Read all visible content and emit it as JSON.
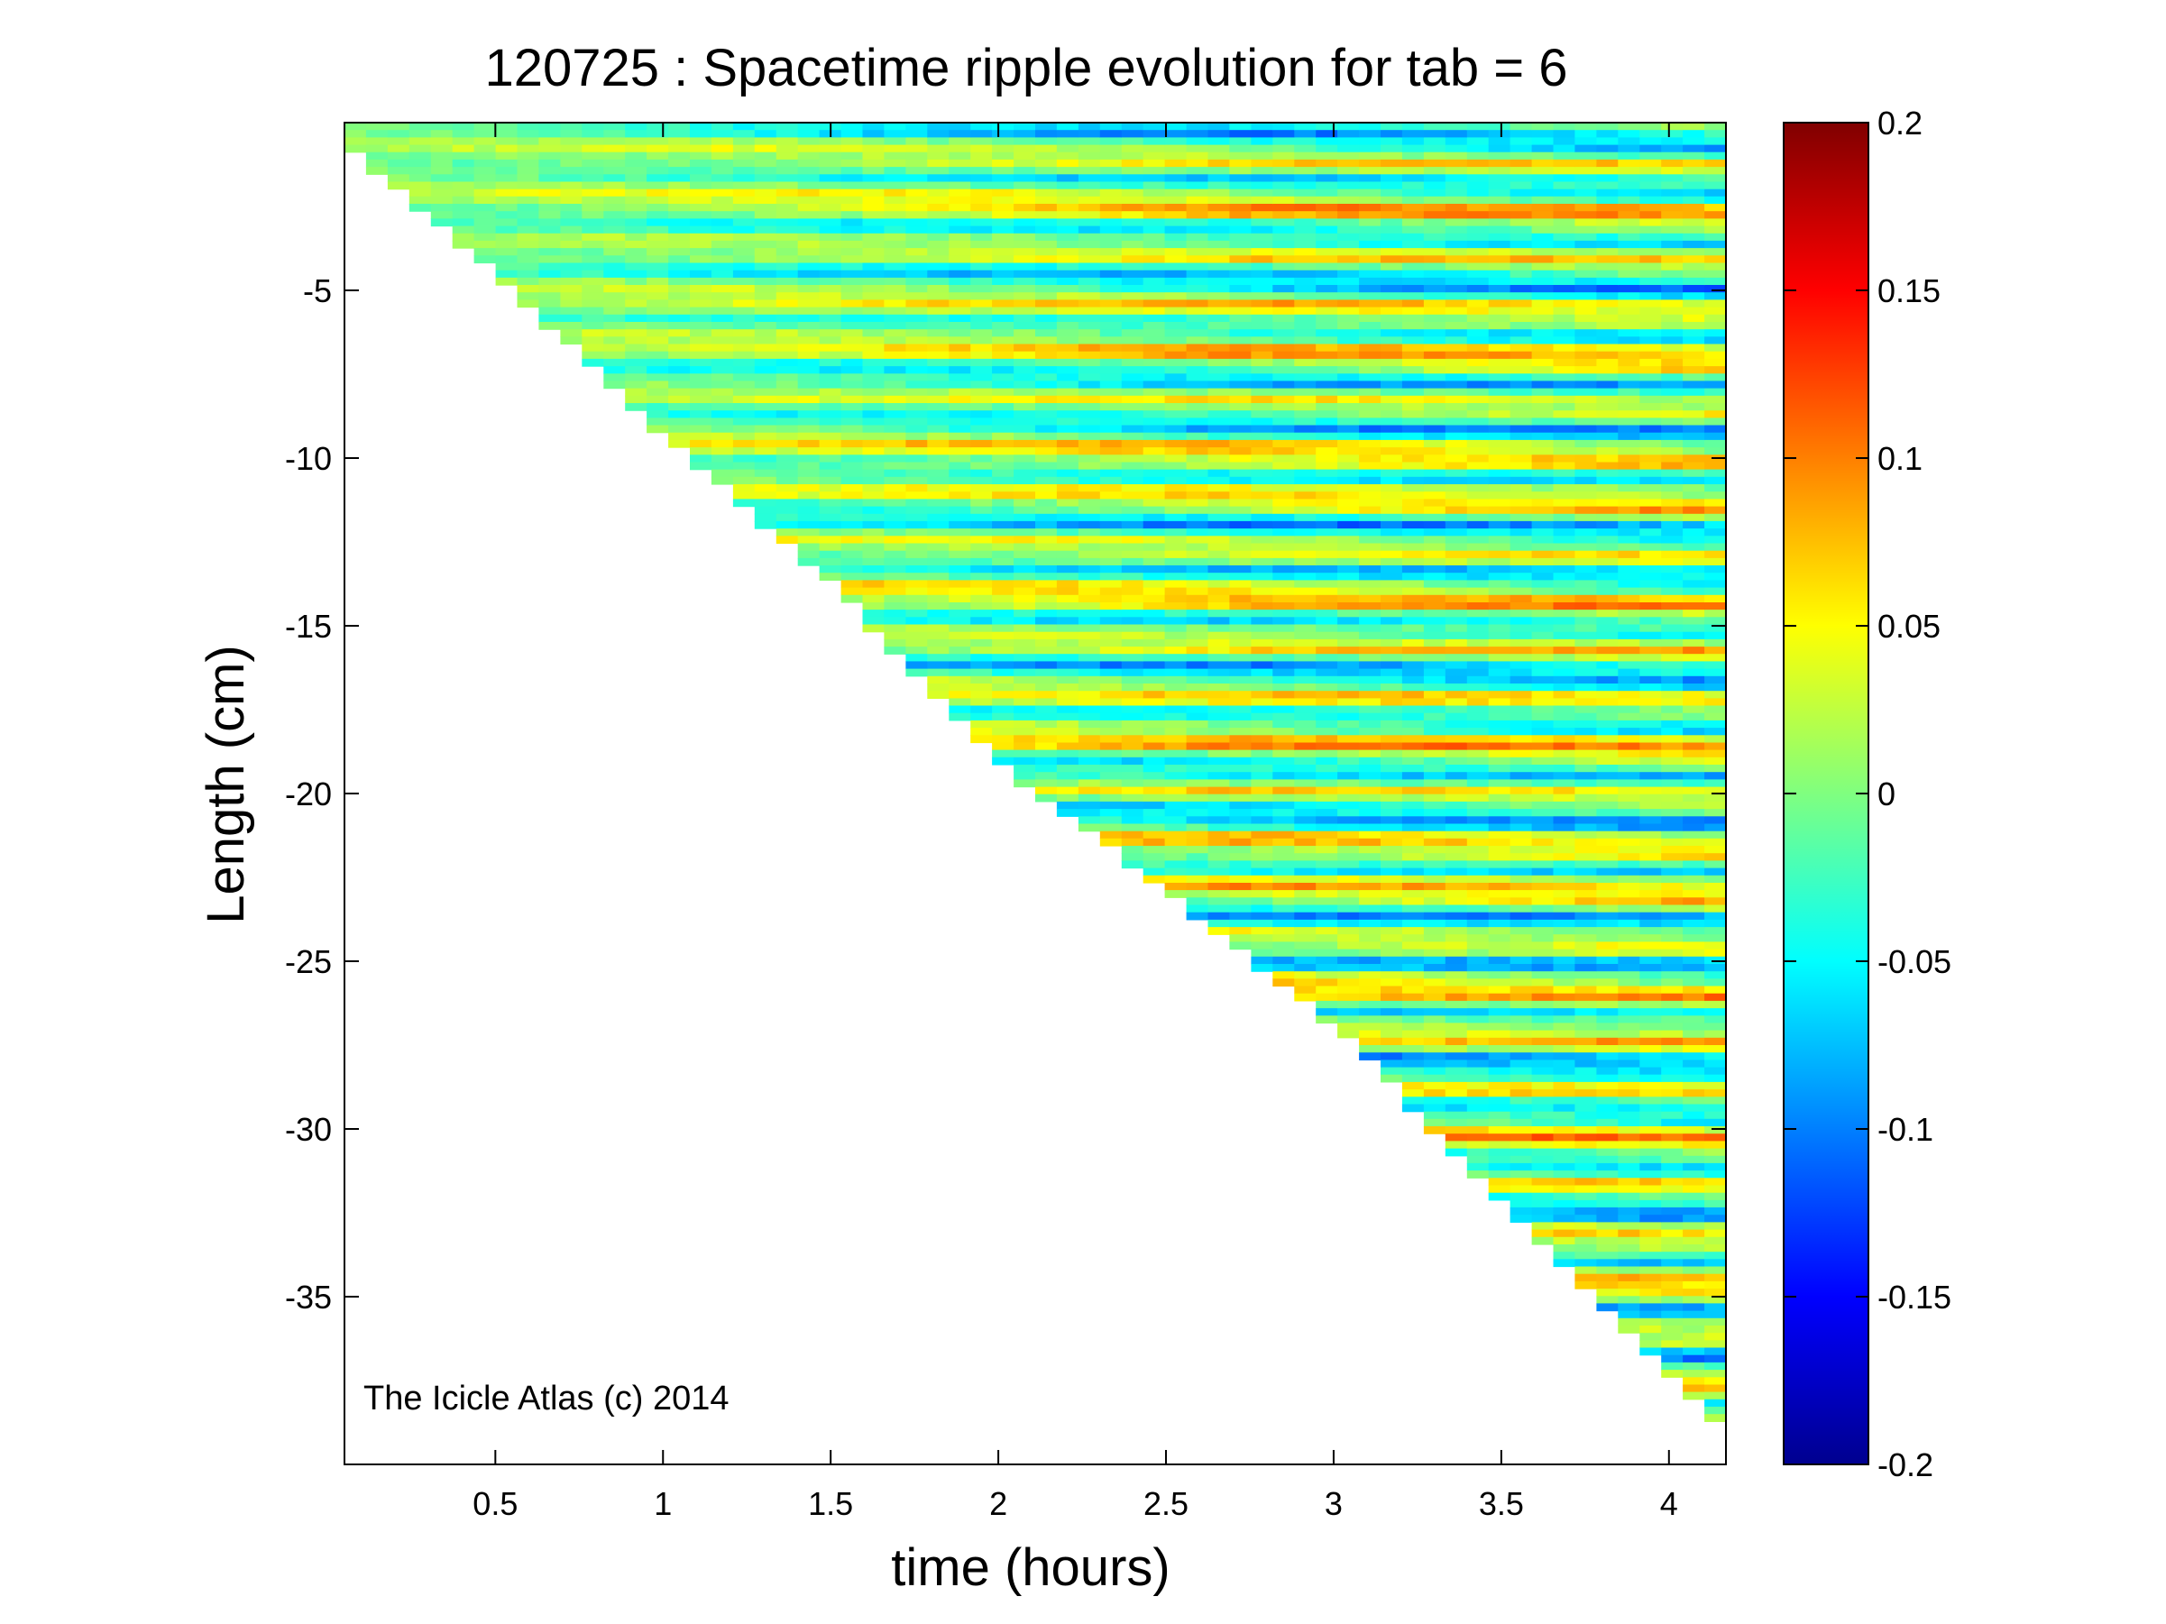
{
  "chart_data": {
    "type": "heatmap",
    "title": "120725 : Spacetime ripple evolution for tab = 6",
    "xlabel": "time (hours)",
    "ylabel": "Length (cm)",
    "xlim": [
      0.05,
      4.17
    ],
    "ylim": [
      -40,
      0
    ],
    "x_ticks": [
      0.5,
      1,
      1.5,
      2,
      2.5,
      3,
      3.5,
      4
    ],
    "x_tick_labels": [
      "0.5",
      "1",
      "1.5",
      "2",
      "2.5",
      "3",
      "3.5",
      "4"
    ],
    "y_ticks": [
      -5,
      -10,
      -15,
      -20,
      -25,
      -30,
      -35
    ],
    "y_tick_labels": [
      "-5",
      "-10",
      "-15",
      "-20",
      "-25",
      "-30",
      "-35"
    ],
    "colormap": "jet",
    "colorbar": {
      "clim": [
        -0.2,
        0.2
      ],
      "ticks": [
        0.2,
        0.15,
        0.1,
        0.05,
        0,
        -0.05,
        -0.1,
        -0.15,
        -0.2
      ],
      "tick_labels": [
        "0.2",
        "0.15",
        "0.1",
        "0.05",
        "0",
        "-0.05",
        "-0.1",
        "-0.15",
        "-0.2"
      ]
    },
    "data_boundary": {
      "description_free": true,
      "time_hours": [
        0.05,
        0.5,
        1.0,
        1.5,
        2.0,
        2.5,
        3.0,
        3.5,
        4.0,
        4.17
      ],
      "min_length_cm": [
        -0.5,
        -4.4,
        -9.2,
        -13.6,
        -19.0,
        -22.8,
        -26.8,
        -32.0,
        -37.2,
        -39.0
      ]
    },
    "grid": false,
    "colorbar_position": "right"
  },
  "annotation": {
    "text": "The Icicle Atlas (c) 2014"
  }
}
